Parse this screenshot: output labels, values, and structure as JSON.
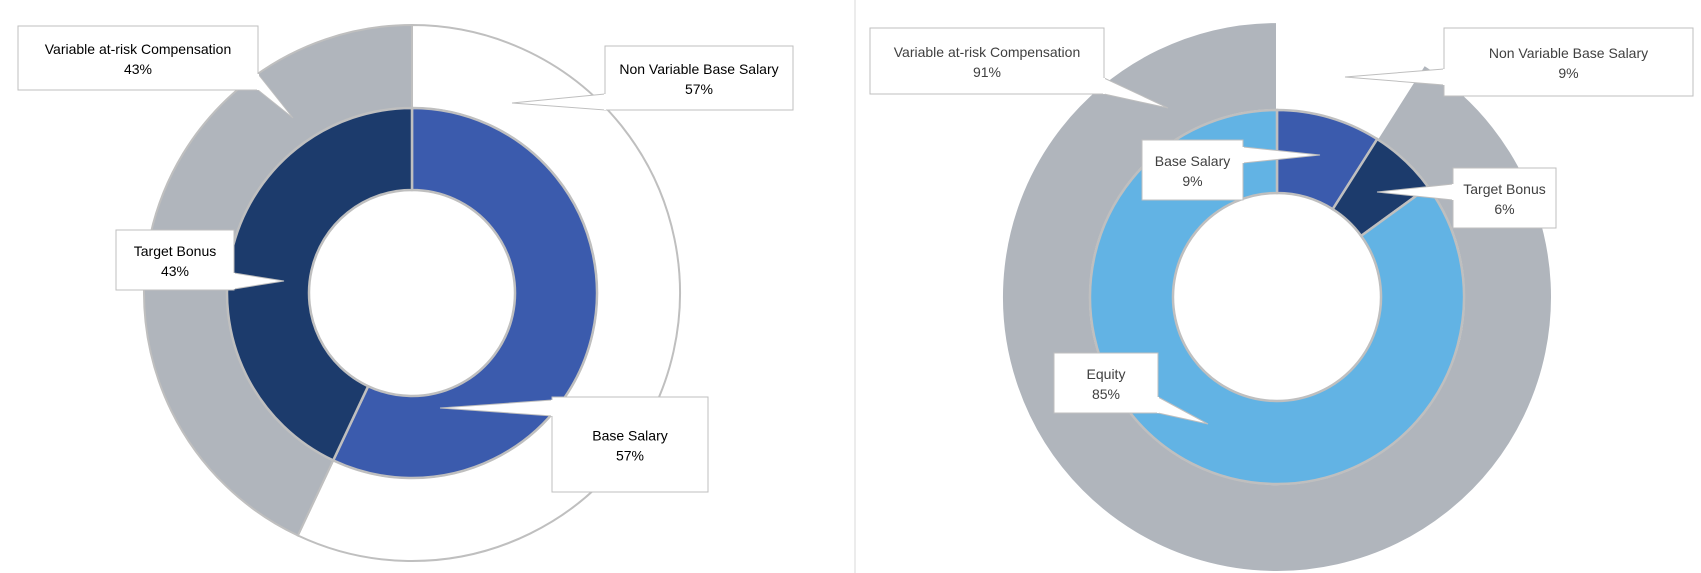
{
  "colors": {
    "background": "#ffffff",
    "divider": "#d9d9d9",
    "outline": "#bfbfbf",
    "gray": "#b0b5bc",
    "navy": "#1c3b6c",
    "royal": "#3b5bad",
    "sky": "#62b3e4",
    "white": "#ffffff"
  },
  "chart_data": [
    {
      "type": "pie",
      "subtype": "nested-donut",
      "title": "",
      "rings": [
        {
          "ring": "outer",
          "slices": [
            {
              "label": "Non Variable Base Salary",
              "value": 57,
              "display": "57%",
              "color": "#ffffff"
            },
            {
              "label": "Variable at-risk Compensation",
              "value": 43,
              "display": "43%",
              "color": "#b0b5bc"
            }
          ]
        },
        {
          "ring": "inner",
          "slices": [
            {
              "label": "Base Salary",
              "value": 57,
              "display": "57%",
              "color": "#3b5bad"
            },
            {
              "label": "Target Bonus",
              "value": 43,
              "display": "43%",
              "color": "#1c3b6c"
            }
          ]
        }
      ]
    },
    {
      "type": "pie",
      "subtype": "nested-donut",
      "title": "",
      "rings": [
        {
          "ring": "outer",
          "slices": [
            {
              "label": "Non Variable Base Salary",
              "value": 9,
              "display": "9%",
              "color": "#ffffff"
            },
            {
              "label": "Variable at-risk Compensation",
              "value": 91,
              "display": "91%",
              "color": "#b0b5bc"
            }
          ]
        },
        {
          "ring": "inner",
          "slices": [
            {
              "label": "Base Salary",
              "value": 9,
              "display": "9%",
              "color": "#3b5bad"
            },
            {
              "label": "Target Bonus",
              "value": 6,
              "display": "6%",
              "color": "#1c3b6c"
            },
            {
              "label": "Equity",
              "value": 85,
              "display": "85%",
              "color": "#62b3e4"
            }
          ]
        }
      ]
    }
  ]
}
